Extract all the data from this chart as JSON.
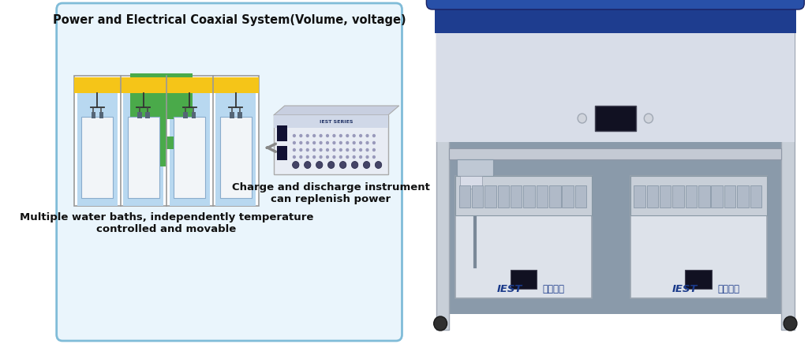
{
  "bg_color": "#ffffff",
  "left_box_color": "#eaf5fc",
  "left_box_border": "#80bcd8",
  "title": "Power and Electrical Coaxial System(Volume, voltage)",
  "title_fontsize": 10.5,
  "label1": "Multiple water baths, independently temperature\ncontrolled and movable",
  "label2": "Charge and discharge instrument\ncan replenish power",
  "green_color": "#4aaa4a",
  "yellow_color": "#f5c518",
  "bath_border": "#999999",
  "bath_fill": "#b8d8f0",
  "bath_inner_fill": "#f2f5f8",
  "instrument_fill": "#e8ecf4",
  "instrument_top": "#c8cfe0",
  "instrument_border": "#aaaaaa",
  "arrow_color": "#888888",
  "text_color": "#111111",
  "label_fontsize": 9.5,
  "iest_color": "#1a3a8a",
  "machine_blue_dark": "#1e3d8f",
  "machine_blue_top": "#2850a8",
  "machine_gray_light": "#dde2ea",
  "machine_gray_frame": "#c0c8d4",
  "machine_inner_bg": "#8a9aaa",
  "machine_white": "#e8ecf0"
}
